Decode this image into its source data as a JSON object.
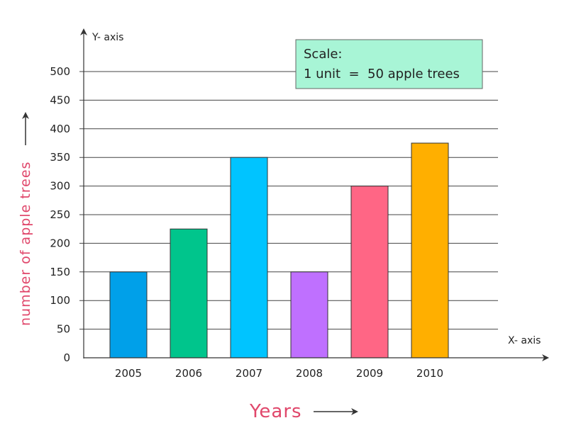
{
  "chart_data": {
    "type": "bar",
    "categories": [
      "2005",
      "2006",
      "2007",
      "2008",
      "2009",
      "2010"
    ],
    "values": [
      150,
      225,
      350,
      150,
      300,
      375
    ],
    "colors": [
      "#00a0e9",
      "#00c58c",
      "#00c4ff",
      "#bf70ff",
      "#ff6685",
      "#ffaf00"
    ],
    "ylim": [
      0,
      500
    ],
    "yticks": [
      0,
      50,
      100,
      150,
      200,
      250,
      300,
      350,
      400,
      450,
      500
    ],
    "y_axis_name": "Y- axis",
    "x_axis_name": "X- axis",
    "ylabel": "number of apple trees",
    "xlabel": "Years",
    "scale_box": {
      "line1": "Scale:",
      "line2": "1 unit  =  50 apple trees",
      "background": "#a8f5d6"
    },
    "grid": true,
    "label_color": "#e0476b"
  }
}
